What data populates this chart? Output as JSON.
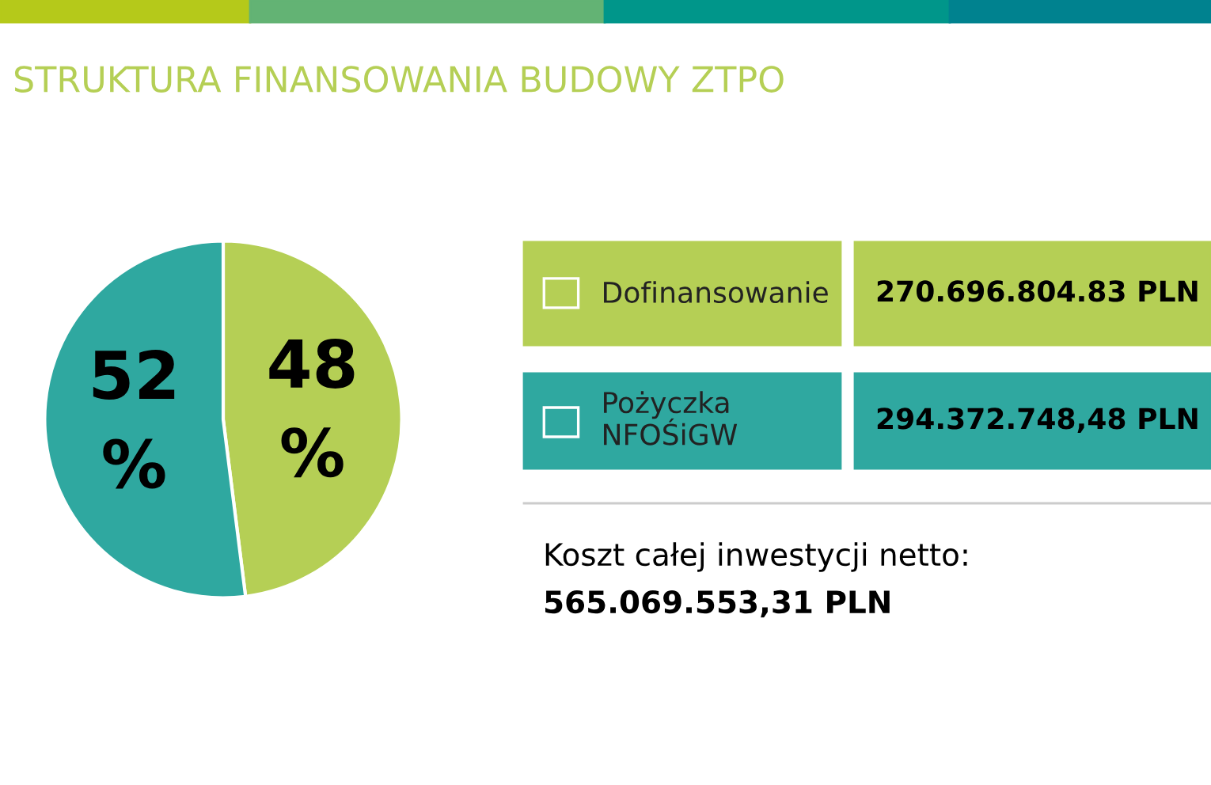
{
  "chart_data": {
    "type": "pie",
    "title": "STRUKTURA FINANSOWANIA BUDOWY ZTPO",
    "categories": [
      "Dofinansowanie",
      "Pożyczka\nNFOŚiGW"
    ],
    "values": [
      48,
      52
    ],
    "colors": [
      "#b5cf55",
      "#2fa8a0"
    ],
    "legend": "right",
    "value_labels": [
      "48\n%",
      "52\n%"
    ],
    "annotations": [
      "270.696.804.83 PLN",
      "294.372.748,48 PLN",
      "Koszt całej inwestycji netto:",
      "565.069.553,31 PLN"
    ]
  }
}
